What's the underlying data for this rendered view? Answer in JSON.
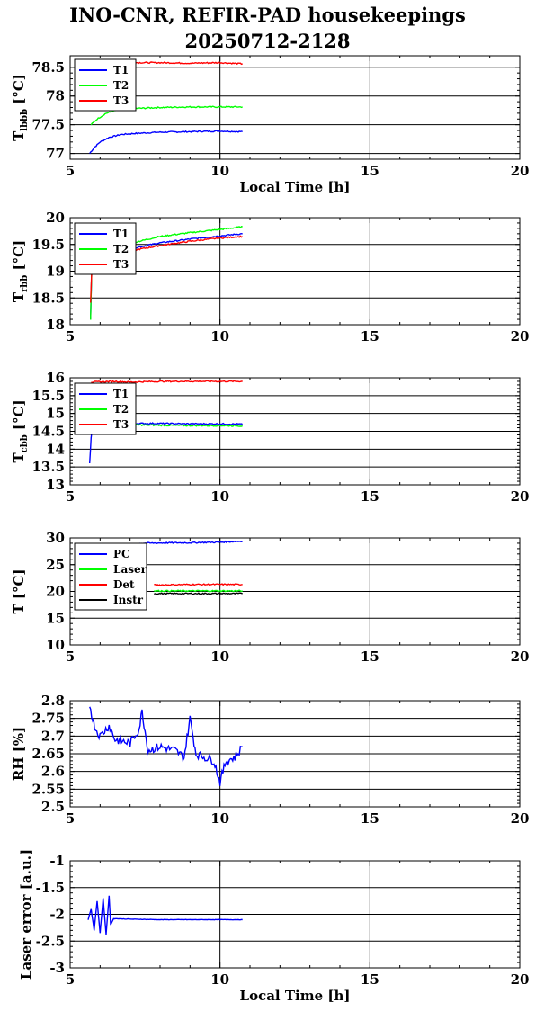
{
  "title_line1": "INO-CNR, REFIR-PAD housekeepings",
  "title_line2": "20250712-2128",
  "colors": {
    "blue": "#0000ff",
    "green": "#00ff00",
    "red": "#ff0000",
    "black": "#000000"
  },
  "chart_data": [
    {
      "type": "line",
      "ylabel": "T_lbbb [°C]",
      "xlabel": "Local Time [h]",
      "xlim": [
        5,
        20
      ],
      "ylim": [
        76.9,
        78.7
      ],
      "xticks": [
        "5",
        "10",
        "15",
        "20"
      ],
      "yticks": [
        "77",
        "77.5",
        "78",
        "78.5"
      ],
      "grid": true,
      "legend_position": "top-left",
      "series": [
        {
          "name": "T1",
          "color": "#0000ff",
          "points": [
            [
              5.65,
              77.0
            ],
            [
              5.8,
              77.1
            ],
            [
              6.0,
              77.2
            ],
            [
              6.3,
              77.28
            ],
            [
              6.7,
              77.33
            ],
            [
              7.2,
              77.35
            ],
            [
              8,
              77.37
            ],
            [
              9,
              77.38
            ],
            [
              10,
              77.39
            ],
            [
              10.75,
              77.38
            ]
          ]
        },
        {
          "name": "T2",
          "color": "#00ff00",
          "points": [
            [
              5.7,
              77.5
            ],
            [
              5.9,
              77.6
            ],
            [
              6.2,
              77.7
            ],
            [
              6.6,
              77.76
            ],
            [
              7,
              77.78
            ],
            [
              8,
              77.8
            ],
            [
              9,
              77.81
            ],
            [
              10,
              77.81
            ],
            [
              10.75,
              77.81
            ]
          ]
        },
        {
          "name": "T3",
          "color": "#ff0000",
          "points": [
            [
              5.7,
              78.58
            ],
            [
              6.5,
              78.58
            ],
            [
              8,
              78.58
            ],
            [
              9,
              78.57
            ],
            [
              10,
              78.58
            ],
            [
              10.75,
              78.56
            ]
          ]
        }
      ]
    },
    {
      "type": "line",
      "ylabel": "T_rbb [°C]",
      "xlim": [
        5,
        20
      ],
      "ylim": [
        18,
        20
      ],
      "xticks": [
        "5",
        "10",
        "15",
        "20"
      ],
      "yticks": [
        "18",
        "18.5",
        "19",
        "19.5",
        "20"
      ],
      "grid": true,
      "legend_position": "top-left",
      "series": [
        {
          "name": "T1",
          "color": "#0000ff",
          "points": [
            [
              5.68,
              18.1
            ],
            [
              5.72,
              19.0
            ],
            [
              5.8,
              19.2
            ],
            [
              6.2,
              19.3
            ],
            [
              7,
              19.42
            ],
            [
              8,
              19.53
            ],
            [
              9,
              19.6
            ],
            [
              10,
              19.66
            ],
            [
              10.75,
              19.7
            ]
          ]
        },
        {
          "name": "T2",
          "color": "#00ff00",
          "points": [
            [
              5.68,
              18.1
            ],
            [
              5.72,
              19.0
            ],
            [
              5.8,
              19.2
            ],
            [
              6.2,
              19.35
            ],
            [
              7,
              19.52
            ],
            [
              8,
              19.65
            ],
            [
              9,
              19.72
            ],
            [
              10,
              19.78
            ],
            [
              10.75,
              19.83
            ]
          ]
        },
        {
          "name": "T3",
          "color": "#ff0000",
          "points": [
            [
              5.68,
              18.4
            ],
            [
              5.72,
              19.0
            ],
            [
              5.8,
              19.15
            ],
            [
              6.2,
              19.25
            ],
            [
              7,
              19.38
            ],
            [
              8,
              19.48
            ],
            [
              9,
              19.56
            ],
            [
              10,
              19.62
            ],
            [
              10.75,
              19.65
            ]
          ]
        }
      ]
    },
    {
      "type": "line",
      "ylabel": "T_cbb [°C]",
      "xlim": [
        5,
        20
      ],
      "ylim": [
        13,
        16
      ],
      "xticks": [
        "5",
        "10",
        "15",
        "20"
      ],
      "yticks": [
        "13",
        "13.5",
        "14",
        "14.5",
        "15",
        "15.5",
        "16"
      ],
      "grid": true,
      "legend_position": "top-left",
      "series": [
        {
          "name": "T1",
          "color": "#0000ff",
          "points": [
            [
              5.65,
              13.6
            ],
            [
              5.7,
              14.3
            ],
            [
              5.75,
              14.7
            ],
            [
              6,
              14.72
            ],
            [
              7,
              14.72
            ],
            [
              8,
              14.72
            ],
            [
              9,
              14.71
            ],
            [
              10,
              14.71
            ],
            [
              10.75,
              14.7
            ]
          ]
        },
        {
          "name": "T2",
          "color": "#00ff00",
          "points": [
            [
              5.7,
              14.65
            ],
            [
              6,
              14.68
            ],
            [
              7,
              14.68
            ],
            [
              8,
              14.67
            ],
            [
              9,
              14.66
            ],
            [
              10,
              14.66
            ],
            [
              10.75,
              14.65
            ]
          ]
        },
        {
          "name": "T3",
          "color": "#ff0000",
          "points": [
            [
              5.7,
              15.88
            ],
            [
              6.5,
              15.9
            ],
            [
              7,
              15.88
            ],
            [
              8,
              15.9
            ],
            [
              9,
              15.9
            ],
            [
              10,
              15.9
            ],
            [
              10.75,
              15.9
            ]
          ]
        }
      ]
    },
    {
      "type": "line",
      "ylabel": "T [°C]",
      "xlim": [
        5,
        20
      ],
      "ylim": [
        10,
        30
      ],
      "xticks": [
        "5",
        "10",
        "15",
        "20"
      ],
      "yticks": [
        "10",
        "15",
        "20",
        "25",
        "30"
      ],
      "grid": true,
      "legend_position": "top-left",
      "series": [
        {
          "name": "PC",
          "color": "#0000ff",
          "points": [
            [
              7.3,
              29.0
            ],
            [
              8,
              29.05
            ],
            [
              9,
              29.1
            ],
            [
              10,
              29.2
            ],
            [
              10.75,
              29.4
            ]
          ]
        },
        {
          "name": "Laser",
          "color": "#00ff00",
          "points": [
            [
              7.8,
              20.1
            ],
            [
              9,
              20.1
            ],
            [
              10,
              20.1
            ],
            [
              10.75,
              20.1
            ]
          ]
        },
        {
          "name": "Det",
          "color": "#ff0000",
          "points": [
            [
              7.8,
              21.2
            ],
            [
              9,
              21.3
            ],
            [
              10,
              21.3
            ],
            [
              10.75,
              21.3
            ]
          ]
        },
        {
          "name": "Instr",
          "color": "#000000",
          "points": [
            [
              7.8,
              19.6
            ],
            [
              9,
              19.6
            ],
            [
              10,
              19.6
            ],
            [
              10.75,
              19.6
            ]
          ]
        }
      ]
    },
    {
      "type": "line",
      "ylabel": "RH [%]",
      "xlim": [
        5,
        20
      ],
      "ylim": [
        2.5,
        2.8
      ],
      "xticks": [
        "5",
        "10",
        "15",
        "20"
      ],
      "yticks": [
        "2.5",
        "2.55",
        "2.6",
        "2.65",
        "2.7",
        "2.75",
        "2.8"
      ],
      "grid": true,
      "legend_position": "none",
      "series": [
        {
          "color": "#0000ff",
          "points": [
            [
              5.65,
              2.79
            ],
            [
              5.75,
              2.75
            ],
            [
              5.85,
              2.72
            ],
            [
              6,
              2.7
            ],
            [
              6.3,
              2.73
            ],
            [
              6.5,
              2.69
            ],
            [
              7,
              2.68
            ],
            [
              7.3,
              2.72
            ],
            [
              7.4,
              2.77
            ],
            [
              7.6,
              2.66
            ],
            [
              8,
              2.67
            ],
            [
              8.5,
              2.66
            ],
            [
              8.8,
              2.64
            ],
            [
              9.0,
              2.75
            ],
            [
              9.2,
              2.65
            ],
            [
              9.5,
              2.64
            ],
            [
              9.8,
              2.63
            ],
            [
              10.0,
              2.57
            ],
            [
              10.2,
              2.63
            ],
            [
              10.5,
              2.64
            ],
            [
              10.75,
              2.67
            ]
          ]
        }
      ]
    },
    {
      "type": "line",
      "ylabel": "Laser error [a.u.]",
      "xlabel": "Local Time [h]",
      "xlim": [
        5,
        20
      ],
      "ylim": [
        -3,
        -1
      ],
      "xticks": [
        "5",
        "10",
        "15",
        "20"
      ],
      "yticks": [
        "-3",
        "-2.5",
        "-2",
        "-1.5",
        "-1"
      ],
      "grid": true,
      "legend_position": "none",
      "series": [
        {
          "color": "#0000ff",
          "points": [
            [
              5.6,
              -2.1
            ],
            [
              5.7,
              -1.9
            ],
            [
              5.8,
              -2.3
            ],
            [
              5.9,
              -1.75
            ],
            [
              6.0,
              -2.35
            ],
            [
              6.1,
              -1.7
            ],
            [
              6.2,
              -2.38
            ],
            [
              6.3,
              -1.65
            ],
            [
              6.35,
              -2.2
            ],
            [
              6.45,
              -2.08
            ],
            [
              7,
              -2.09
            ],
            [
              8,
              -2.1
            ],
            [
              9,
              -2.1
            ],
            [
              10,
              -2.1
            ],
            [
              10.75,
              -2.1
            ]
          ]
        }
      ]
    }
  ]
}
